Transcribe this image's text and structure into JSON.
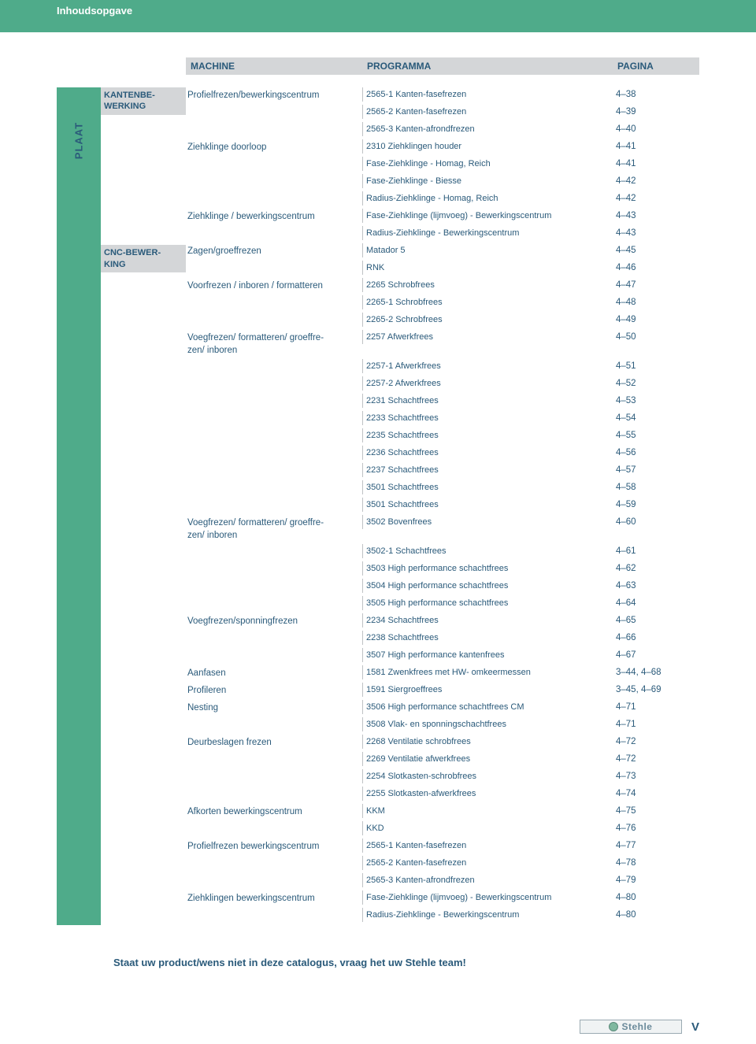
{
  "header": {
    "title": "Inhoudsopgave"
  },
  "columns": {
    "machine": "MACHINE",
    "programma": "PROGRAMMA",
    "pagina": "PAGINA"
  },
  "vertLabel": "PLAAT",
  "categories": [
    {
      "label": "KANTENBE-WERKING",
      "rowspan": 9
    },
    {
      "label": "CNC-BEWER-KING",
      "rowspan": 38
    }
  ],
  "rows": [
    {
      "machine": "Profielfrezen/bewerkingscentrum",
      "programma": "2565-1 Kanten-fasefrezen",
      "pagina": "4–38"
    },
    {
      "machine": "",
      "programma": "2565-2 Kanten-fasefrezen",
      "pagina": "4–39"
    },
    {
      "machine": "",
      "programma": "2565-3 Kanten-afrondfrezen",
      "pagina": "4–40"
    },
    {
      "machine": "Ziehklinge doorloop",
      "programma": "2310 Ziehklingen houder",
      "pagina": "4–41"
    },
    {
      "machine": "",
      "programma": "Fase-Ziehklinge - Homag, Reich",
      "pagina": "4–41"
    },
    {
      "machine": "",
      "programma": "Fase-Ziehklinge - Biesse",
      "pagina": "4–42"
    },
    {
      "machine": "",
      "programma": "Radius-Ziehklinge - Homag, Reich",
      "pagina": "4–42"
    },
    {
      "machine": "Ziehklinge / bewerkingscentrum",
      "programma": "Fase-Ziehklinge (lijmvoeg) - Bewerkingscentrum",
      "pagina": "4–43"
    },
    {
      "machine": "",
      "programma": "Radius-Ziehklinge - Bewerkingscentrum",
      "pagina": "4–43"
    },
    {
      "machine": "Zagen/groeffrezen",
      "programma": "Matador 5",
      "pagina": "4–45"
    },
    {
      "machine": "",
      "programma": "RNK",
      "pagina": "4–46"
    },
    {
      "machine": "Voorfrezen / inboren / formatteren",
      "programma": "2265 Schrobfrees",
      "pagina": "4–47"
    },
    {
      "machine": "",
      "programma": "2265-1 Schrobfrees",
      "pagina": "4–48"
    },
    {
      "machine": "",
      "programma": "2265-2 Schrobfrees",
      "pagina": "4–49"
    },
    {
      "machine": "Voegfrezen/ formatteren/ groeffre-zen/ inboren",
      "programma": "2257 Afwerkfrees",
      "pagina": "4–50"
    },
    {
      "machine": "",
      "programma": "2257-1 Afwerkfrees",
      "pagina": "4–51"
    },
    {
      "machine": "",
      "programma": "2257-2 Afwerkfrees",
      "pagina": "4–52"
    },
    {
      "machine": "",
      "programma": "2231 Schachtfrees",
      "pagina": "4–53"
    },
    {
      "machine": "",
      "programma": "2233 Schachtfrees",
      "pagina": "4–54"
    },
    {
      "machine": "",
      "programma": "2235 Schachtfrees",
      "pagina": "4–55"
    },
    {
      "machine": "",
      "programma": "2236 Schachtfrees",
      "pagina": "4–56"
    },
    {
      "machine": "",
      "programma": "2237 Schachtfrees",
      "pagina": "4–57"
    },
    {
      "machine": "",
      "programma": "3501 Schachtfrees",
      "pagina": "4–58"
    },
    {
      "machine": "",
      "programma": "3501 Schachtfrees",
      "pagina": "4–59"
    },
    {
      "machine": "Voegfrezen/ formatteren/ groeffre-zen/ inboren",
      "programma": "3502 Bovenfrees",
      "pagina": "4–60"
    },
    {
      "machine": "",
      "programma": "3502-1 Schachtfrees",
      "pagina": "4–61"
    },
    {
      "machine": "",
      "programma": "3503 High performance schachtfrees",
      "pagina": "4–62"
    },
    {
      "machine": "",
      "programma": "3504 High performance schachtfrees",
      "pagina": "4–63"
    },
    {
      "machine": "",
      "programma": "3505 High performance schachtfrees",
      "pagina": "4–64"
    },
    {
      "machine": "Voegfrezen/sponningfrezen",
      "programma": "2234 Schachtfrees",
      "pagina": "4–65"
    },
    {
      "machine": "",
      "programma": "2238 Schachtfrees",
      "pagina": "4–66"
    },
    {
      "machine": "",
      "programma": "3507 High performance kantenfrees",
      "pagina": "4–67"
    },
    {
      "machine": "Aanfasen",
      "programma": "1581 Zwenkfrees met HW- omkeermessen",
      "pagina": "3–44, 4–68"
    },
    {
      "machine": "Profileren",
      "programma": "1591 Siergroeffrees",
      "pagina": "3–45, 4–69"
    },
    {
      "machine": "Nesting",
      "programma": "3506 High performance schachtfrees CM",
      "pagina": "4–71"
    },
    {
      "machine": "",
      "programma": "3508 Vlak- en sponningschachtfrees",
      "pagina": "4–71"
    },
    {
      "machine": "Deurbeslagen frezen",
      "programma": "2268 Ventilatie schrobfrees",
      "pagina": "4–72"
    },
    {
      "machine": "",
      "programma": "2269 Ventilatie afwerkfrees",
      "pagina": "4–72"
    },
    {
      "machine": "",
      "programma": "2254 Slotkasten-schrobfrees",
      "pagina": "4–73"
    },
    {
      "machine": "",
      "programma": "2255 Slotkasten-afwerkfrees",
      "pagina": "4–74"
    },
    {
      "machine": "Afkorten bewerkingscentrum",
      "programma": "KKM",
      "pagina": "4–75"
    },
    {
      "machine": "",
      "programma": "KKD",
      "pagina": "4–76"
    },
    {
      "machine": "Profielfrezen bewerkingscentrum",
      "programma": "2565-1 Kanten-fasefrezen",
      "pagina": "4–77"
    },
    {
      "machine": "",
      "programma": "2565-2 Kanten-fasefrezen",
      "pagina": "4–78"
    },
    {
      "machine": "",
      "programma": "2565-3 Kanten-afrondfrezen",
      "pagina": "4–79"
    },
    {
      "machine": "Ziehklingen bewerkingscentrum",
      "programma": "Fase-Ziehklinge (lijmvoeg) - Bewerkingscentrum",
      "pagina": "4–80"
    },
    {
      "machine": "",
      "programma": "Radius-Ziehklinge - Bewerkingscentrum",
      "pagina": "4–80"
    }
  ],
  "footerNote": "Staat uw product/wens niet in deze catalogus, vraag het uw Stehle team!",
  "logoText": "Stehle",
  "pageNum": "V",
  "colors": {
    "accent": "#4fab8a",
    "textBlue": "#2a5a7a",
    "headerGrey": "#d4d6d8"
  }
}
